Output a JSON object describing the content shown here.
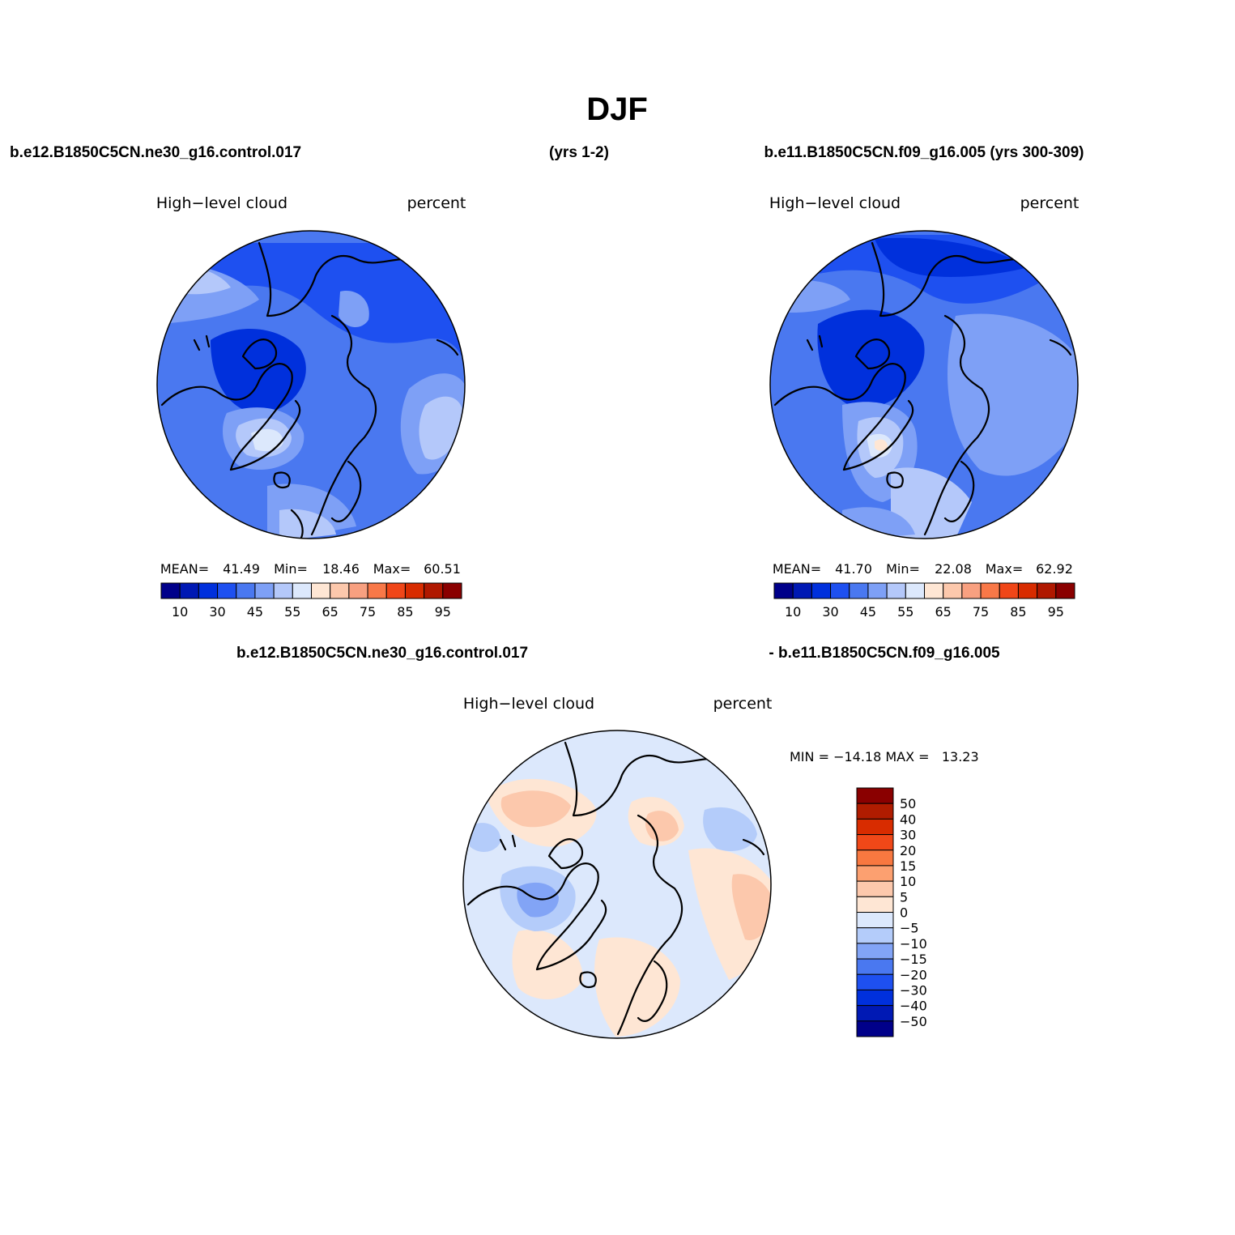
{
  "title": "DJF",
  "case1": "b.e12.B1850C5CN.ne30_g16.control.017",
  "case1_years": "(yrs 1-2)",
  "case2": "b.e11.B1850C5CN.f09_g16.005 (yrs 300-309)",
  "diff_left": "b.e12.B1850C5CN.ne30_g16.control.017",
  "diff_right": "- b.e11.B1850C5CN.f09_g16.005",
  "panels": [
    {
      "variable": "High−level cloud",
      "units": "percent",
      "stats": {
        "mean_label": "MEAN=",
        "mean": "41.49",
        "min_label": "Min=",
        "min": "18.46",
        "max_label": "Max=",
        "max": "60.51"
      }
    },
    {
      "variable": "High−level cloud",
      "units": "percent",
      "stats": {
        "mean_label": "MEAN=",
        "mean": "41.70",
        "min_label": "Min=",
        "min": "22.08",
        "max_label": "Max=",
        "max": "62.92"
      }
    },
    {
      "variable": "High−level cloud",
      "units": "percent",
      "stats": {
        "text": "MIN = −14.18 MAX =   13.23"
      }
    }
  ],
  "colorbar_abs": {
    "colors": [
      "#00008a",
      "#0019b4",
      "#0030dc",
      "#1e50f0",
      "#4a78f0",
      "#7ea0f6",
      "#b4c8fa",
      "#dce8fc",
      "#fee6d4",
      "#fcc8ac",
      "#f8a080",
      "#f87848",
      "#f04618",
      "#d82c00",
      "#b01800",
      "#8a0000"
    ],
    "labels": [
      "10",
      "30",
      "45",
      "55",
      "65",
      "75",
      "85",
      "95"
    ]
  },
  "colorbar_diff": {
    "colors": [
      "#8a0000",
      "#b01c00",
      "#d82c00",
      "#f04818",
      "#f87840",
      "#fca070",
      "#fcc8ac",
      "#fee6d4",
      "#dce8fc",
      "#b4ccfa",
      "#82a4f6",
      "#4a78f0",
      "#1e50f0",
      "#0030dc",
      "#0019b4",
      "#00008a"
    ],
    "labels": [
      "50",
      "40",
      "30",
      "20",
      "15",
      "10",
      "5",
      "0",
      "−5",
      "−10",
      "−15",
      "−20",
      "−30",
      "−40",
      "−50"
    ]
  }
}
